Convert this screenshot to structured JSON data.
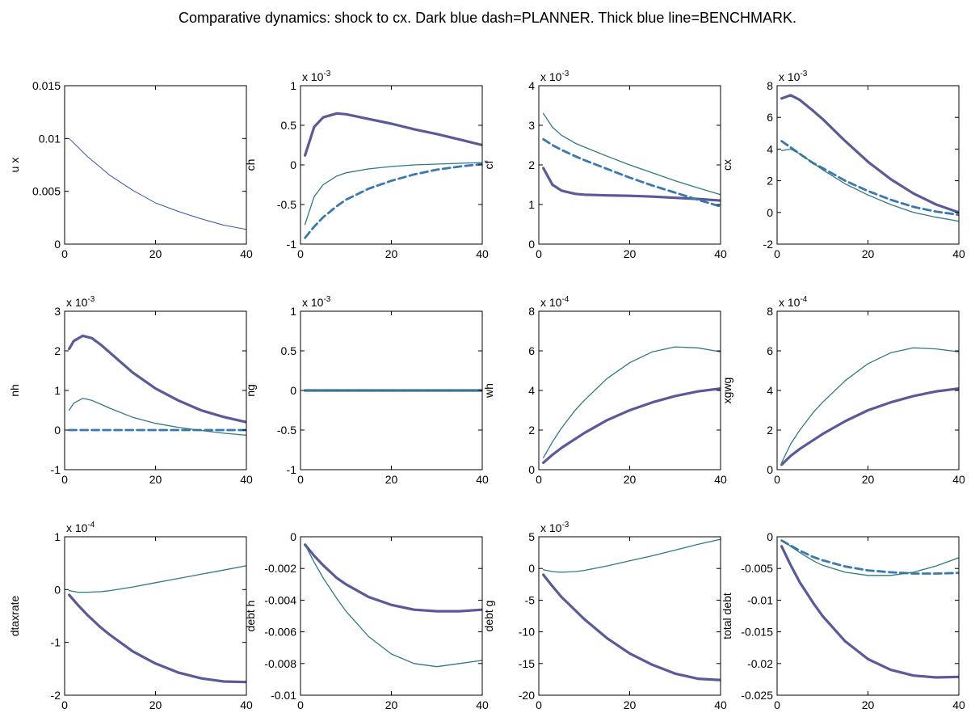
{
  "figure": {
    "title": "Comparative dynamics: shock to cx. Dark blue dash=PLANNER. Thick blue line=BENCHMARK.",
    "colors": {
      "benchmark": "#5a5a9a",
      "planner": "#3a78b0",
      "third": "#2e7a82",
      "shock": "#3355aa"
    }
  },
  "chart_data": [
    {
      "type": "line",
      "ylabel": "",
      "ylabel_partial": "u x",
      "exponent": "",
      "ylim": [
        0,
        0.015
      ],
      "yticks": [
        "0",
        "0.005",
        "0.01",
        "0.015"
      ],
      "ytick_values": [
        0,
        0.005,
        0.01,
        0.015
      ],
      "xlim": [
        0,
        40
      ],
      "xticks": [
        0,
        20,
        40
      ],
      "x": [
        1,
        5,
        10,
        15,
        20,
        25,
        30,
        35,
        40
      ],
      "series": [
        {
          "role": "shock",
          "values": [
            0.01,
            0.0083,
            0.0065,
            0.0051,
            0.0039,
            0.0031,
            0.0024,
            0.0018,
            0.0014
          ]
        }
      ]
    },
    {
      "type": "line",
      "ylabel": "ch",
      "exponent": "x 10-3",
      "ylim": [
        -1,
        1
      ],
      "yticks": [
        "-1",
        "-0.5",
        "0",
        "0.5",
        "1"
      ],
      "ytick_values": [
        -1,
        -0.5,
        0,
        0.5,
        1
      ],
      "xlim": [
        0,
        40
      ],
      "xticks": [
        0,
        20,
        40
      ],
      "x": [
        1,
        3,
        5,
        8,
        10,
        15,
        20,
        25,
        30,
        35,
        40
      ],
      "series": [
        {
          "role": "benchmark",
          "values": [
            0.12,
            0.48,
            0.6,
            0.65,
            0.64,
            0.58,
            0.52,
            0.45,
            0.39,
            0.32,
            0.25
          ]
        },
        {
          "role": "planner",
          "values": [
            -0.92,
            -0.78,
            -0.66,
            -0.52,
            -0.44,
            -0.3,
            -0.2,
            -0.12,
            -0.06,
            -0.02,
            0.01
          ]
        },
        {
          "role": "third",
          "values": [
            -0.75,
            -0.4,
            -0.25,
            -0.14,
            -0.1,
            -0.05,
            -0.02,
            0.0,
            0.01,
            0.02,
            0.03
          ]
        }
      ]
    },
    {
      "type": "line",
      "ylabel": "cf",
      "exponent": "x 10-3",
      "ylim": [
        0,
        4
      ],
      "yticks": [
        "0",
        "1",
        "2",
        "3",
        "4"
      ],
      "ytick_values": [
        0,
        1,
        2,
        3,
        4
      ],
      "xlim": [
        0,
        40
      ],
      "xticks": [
        0,
        20,
        40
      ],
      "x": [
        1,
        3,
        5,
        8,
        10,
        15,
        20,
        25,
        30,
        35,
        40
      ],
      "series": [
        {
          "role": "benchmark",
          "values": [
            1.92,
            1.5,
            1.35,
            1.27,
            1.25,
            1.23,
            1.22,
            1.2,
            1.17,
            1.14,
            1.1
          ]
        },
        {
          "role": "planner",
          "values": [
            2.65,
            2.5,
            2.38,
            2.22,
            2.12,
            1.9,
            1.68,
            1.48,
            1.3,
            1.12,
            0.95
          ]
        },
        {
          "role": "third",
          "values": [
            3.3,
            2.95,
            2.75,
            2.55,
            2.45,
            2.22,
            2.0,
            1.8,
            1.6,
            1.42,
            1.25
          ]
        }
      ]
    },
    {
      "type": "line",
      "ylabel": "cx",
      "exponent": "x 10-3",
      "ylim": [
        -2,
        8
      ],
      "yticks": [
        "-2",
        "0",
        "2",
        "4",
        "6",
        "8"
      ],
      "ytick_values": [
        -2,
        0,
        2,
        4,
        6,
        8
      ],
      "xlim": [
        0,
        40
      ],
      "xticks": [
        0,
        20,
        40
      ],
      "x": [
        1,
        3,
        5,
        8,
        10,
        15,
        20,
        25,
        30,
        35,
        40
      ],
      "series": [
        {
          "role": "benchmark",
          "values": [
            7.2,
            7.4,
            7.1,
            6.4,
            5.9,
            4.5,
            3.2,
            2.1,
            1.2,
            0.5,
            0.0
          ]
        },
        {
          "role": "planner",
          "values": [
            4.5,
            4.1,
            3.7,
            3.1,
            2.8,
            2.0,
            1.35,
            0.8,
            0.35,
            0.05,
            -0.15
          ]
        },
        {
          "role": "third",
          "values": [
            3.9,
            4.0,
            3.7,
            3.1,
            2.7,
            1.8,
            1.1,
            0.5,
            0.0,
            -0.3,
            -0.55
          ]
        }
      ]
    },
    {
      "type": "line",
      "ylabel": "nh",
      "exponent": "x 10-3",
      "ylim": [
        -1,
        3
      ],
      "yticks": [
        "-1",
        "0",
        "1",
        "2",
        "3"
      ],
      "ytick_values": [
        -1,
        0,
        1,
        2,
        3
      ],
      "xlim": [
        0,
        40
      ],
      "xticks": [
        0,
        20,
        40
      ],
      "x": [
        1,
        2,
        4,
        6,
        8,
        10,
        15,
        20,
        25,
        30,
        35,
        40
      ],
      "series": [
        {
          "role": "benchmark",
          "values": [
            2.05,
            2.25,
            2.38,
            2.32,
            2.15,
            1.95,
            1.45,
            1.05,
            0.75,
            0.5,
            0.33,
            0.2
          ]
        },
        {
          "role": "planner",
          "values": [
            0.0,
            0.0,
            0.0,
            0.0,
            0.0,
            0.0,
            0.0,
            0.0,
            0.0,
            0.0,
            0.0,
            0.0
          ]
        },
        {
          "role": "third",
          "values": [
            0.5,
            0.68,
            0.8,
            0.75,
            0.65,
            0.55,
            0.32,
            0.17,
            0.07,
            -0.01,
            -0.08,
            -0.13
          ]
        }
      ]
    },
    {
      "type": "line",
      "ylabel": "ng",
      "exponent": "x 10-3",
      "ylim": [
        -1,
        1
      ],
      "yticks": [
        "-1",
        "-0.5",
        "0",
        "0.5",
        "1"
      ],
      "ytick_values": [
        -1,
        -0.5,
        0,
        0.5,
        1
      ],
      "xlim": [
        0,
        40
      ],
      "xticks": [
        0,
        20,
        40
      ],
      "x": [
        1,
        10,
        20,
        30,
        40
      ],
      "series": [
        {
          "role": "benchmark",
          "values": [
            0,
            0,
            0,
            0,
            0
          ]
        },
        {
          "role": "planner",
          "values": [
            0,
            0,
            0,
            0,
            0
          ]
        },
        {
          "role": "third",
          "values": [
            0,
            0,
            0,
            0,
            0
          ]
        }
      ]
    },
    {
      "type": "line",
      "ylabel": "wh",
      "exponent": "x 10-4",
      "ylim": [
        0,
        8
      ],
      "yticks": [
        "0",
        "2",
        "4",
        "6",
        "8"
      ],
      "ytick_values": [
        0,
        2,
        4,
        6,
        8
      ],
      "xlim": [
        0,
        40
      ],
      "xticks": [
        0,
        20,
        40
      ],
      "x": [
        1,
        3,
        5,
        8,
        10,
        15,
        20,
        25,
        30,
        35,
        40
      ],
      "series": [
        {
          "role": "benchmark",
          "values": [
            0.35,
            0.75,
            1.1,
            1.55,
            1.85,
            2.5,
            3.0,
            3.4,
            3.72,
            3.95,
            4.1
          ]
        },
        {
          "role": "third",
          "values": [
            0.6,
            1.4,
            2.1,
            3.0,
            3.5,
            4.6,
            5.4,
            5.95,
            6.2,
            6.15,
            5.95
          ]
        }
      ]
    },
    {
      "type": "line",
      "ylabel": "xgwg",
      "exponent": "x 10-4",
      "ylim": [
        0,
        8
      ],
      "yticks": [
        "0",
        "2",
        "4",
        "6",
        "8"
      ],
      "ytick_values": [
        0,
        2,
        4,
        6,
        8
      ],
      "xlim": [
        0,
        40
      ],
      "xticks": [
        0,
        20,
        40
      ],
      "x": [
        1,
        3,
        5,
        8,
        10,
        15,
        20,
        25,
        30,
        35,
        40
      ],
      "series": [
        {
          "role": "benchmark",
          "values": [
            0.25,
            0.7,
            1.05,
            1.5,
            1.8,
            2.45,
            3.0,
            3.4,
            3.72,
            3.95,
            4.1
          ]
        },
        {
          "role": "third",
          "values": [
            0.35,
            1.3,
            2.0,
            2.9,
            3.4,
            4.5,
            5.35,
            5.9,
            6.15,
            6.1,
            5.95
          ]
        }
      ]
    },
    {
      "type": "line",
      "ylabel": "dtaxrate",
      "exponent": "x 10-4",
      "ylim": [
        -2,
        1
      ],
      "yticks": [
        "-2",
        "-1",
        "0",
        "1"
      ],
      "ytick_values": [
        -2,
        -1,
        0,
        1
      ],
      "xlim": [
        0,
        40
      ],
      "xticks": [
        0,
        20,
        40
      ],
      "x": [
        1,
        3,
        5,
        8,
        10,
        15,
        20,
        25,
        30,
        35,
        40
      ],
      "series": [
        {
          "role": "benchmark",
          "values": [
            -0.1,
            -0.3,
            -0.48,
            -0.72,
            -0.86,
            -1.17,
            -1.4,
            -1.57,
            -1.68,
            -1.74,
            -1.75
          ]
        },
        {
          "role": "third",
          "values": [
            -0.02,
            -0.05,
            -0.05,
            -0.04,
            -0.02,
            0.05,
            0.13,
            0.21,
            0.29,
            0.37,
            0.45
          ]
        }
      ]
    },
    {
      "type": "line",
      "ylabel": "debt h",
      "exponent": "",
      "ylim": [
        -0.01,
        0
      ],
      "yticks": [
        "-0.01",
        "-0.008",
        "-0.006",
        "-0.004",
        "-0.002",
        "0"
      ],
      "ytick_values": [
        -0.01,
        -0.008,
        -0.006,
        -0.004,
        -0.002,
        0
      ],
      "xlim": [
        0,
        40
      ],
      "xticks": [
        0,
        20,
        40
      ],
      "x": [
        1,
        3,
        5,
        8,
        10,
        15,
        20,
        25,
        30,
        35,
        40
      ],
      "series": [
        {
          "role": "benchmark",
          "values": [
            -0.0005,
            -0.0012,
            -0.0018,
            -0.0026,
            -0.003,
            -0.0038,
            -0.0043,
            -0.0046,
            -0.0047,
            -0.0047,
            -0.0046
          ]
        },
        {
          "role": "third",
          "values": [
            -0.0005,
            -0.0016,
            -0.0026,
            -0.0039,
            -0.0047,
            -0.0063,
            -0.0074,
            -0.008,
            -0.0082,
            -0.008,
            -0.0078
          ]
        }
      ]
    },
    {
      "type": "line",
      "ylabel": "debt g",
      "exponent": "x 10-3",
      "ylim": [
        -20,
        5
      ],
      "yticks": [
        "-20",
        "-15",
        "-10",
        "-5",
        "0",
        "5"
      ],
      "ytick_values": [
        -20,
        -15,
        -10,
        -5,
        0,
        5
      ],
      "xlim": [
        0,
        40
      ],
      "xticks": [
        0,
        20,
        40
      ],
      "x": [
        1,
        3,
        5,
        8,
        10,
        15,
        20,
        25,
        30,
        35,
        40
      ],
      "series": [
        {
          "role": "benchmark",
          "values": [
            -1.0,
            -2.8,
            -4.5,
            -6.6,
            -8.0,
            -11.0,
            -13.4,
            -15.2,
            -16.6,
            -17.4,
            -17.6
          ]
        },
        {
          "role": "third",
          "values": [
            -0.2,
            -0.5,
            -0.6,
            -0.5,
            -0.3,
            0.4,
            1.2,
            2.0,
            2.9,
            3.8,
            4.6
          ]
        }
      ]
    },
    {
      "type": "line",
      "ylabel": "total debt",
      "exponent": "",
      "ylim": [
        -0.025,
        0
      ],
      "yticks": [
        "-0.025",
        "-0.02",
        "-0.015",
        "-0.01",
        "-0.005",
        "0"
      ],
      "ytick_values": [
        -0.025,
        -0.02,
        -0.015,
        -0.01,
        -0.005,
        0
      ],
      "xlim": [
        0,
        40
      ],
      "xticks": [
        0,
        20,
        40
      ],
      "x": [
        1,
        3,
        5,
        8,
        10,
        15,
        20,
        25,
        30,
        35,
        40
      ],
      "series": [
        {
          "role": "benchmark",
          "values": [
            -0.0015,
            -0.0045,
            -0.0072,
            -0.0105,
            -0.0125,
            -0.0165,
            -0.0193,
            -0.021,
            -0.0219,
            -0.0222,
            -0.0221
          ]
        },
        {
          "role": "planner",
          "values": [
            -0.0006,
            -0.0014,
            -0.0022,
            -0.0032,
            -0.0037,
            -0.0047,
            -0.0053,
            -0.0056,
            -0.0058,
            -0.0058,
            -0.0057
          ]
        },
        {
          "role": "third",
          "values": [
            -0.0005,
            -0.0015,
            -0.0025,
            -0.0038,
            -0.0045,
            -0.0056,
            -0.0061,
            -0.0061,
            -0.0056,
            -0.0046,
            -0.0033
          ]
        }
      ]
    }
  ]
}
